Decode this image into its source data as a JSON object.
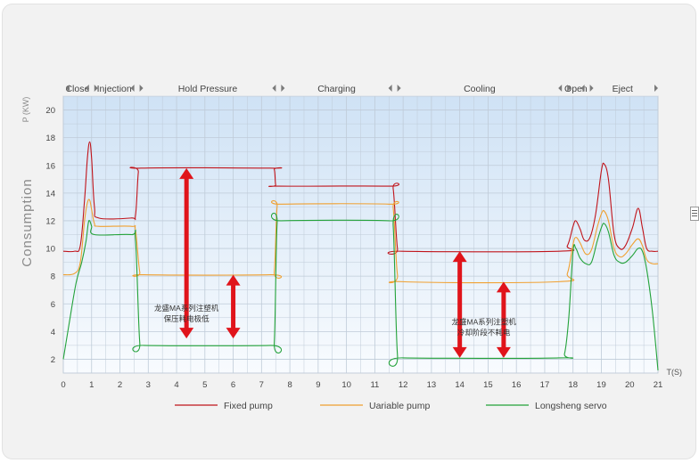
{
  "chart_data": {
    "type": "line",
    "ylabel": "Consumption",
    "yunit": "P (KW)",
    "xunit": "T(S)",
    "xlim": [
      0,
      21
    ],
    "ylim": [
      1,
      21
    ],
    "x_ticks": [
      "0",
      "1",
      "2",
      "3",
      "4",
      "5",
      "6",
      "7",
      "8",
      "9",
      "10",
      "11",
      "12",
      "13",
      "14",
      "15",
      "16",
      "17",
      "18",
      "19",
      "20",
      "21"
    ],
    "y_ticks": [
      2,
      4,
      6,
      8,
      10,
      12,
      14,
      16,
      18,
      20
    ],
    "grid": true,
    "legend_position": "bottom",
    "phases": [
      {
        "label": "Close",
        "start": 0,
        "end": 1.0
      },
      {
        "label": "Injection",
        "start": 1.0,
        "end": 2.6
      },
      {
        "label": "Hold Pressure",
        "start": 2.6,
        "end": 7.6
      },
      {
        "label": "Charging",
        "start": 7.6,
        "end": 11.7
      },
      {
        "label": "Cooling",
        "start": 11.7,
        "end": 17.7
      },
      {
        "label": "Open",
        "start": 17.7,
        "end": 18.5
      },
      {
        "label": "Eject",
        "start": 18.5,
        "end": 21
      }
    ],
    "series": [
      {
        "name": "Fixed pump",
        "color": "#c0141b",
        "points": [
          [
            0.0,
            9.8
          ],
          [
            0.4,
            9.8
          ],
          [
            0.6,
            10.2
          ],
          [
            0.75,
            13.5
          ],
          [
            0.85,
            16.5
          ],
          [
            0.93,
            17.7
          ],
          [
            1.0,
            16.5
          ],
          [
            1.1,
            13.0
          ],
          [
            1.25,
            12.2
          ],
          [
            2.4,
            12.2
          ],
          [
            2.55,
            12.4
          ],
          [
            2.65,
            15.5
          ],
          [
            2.75,
            15.8
          ],
          [
            7.3,
            15.8
          ],
          [
            7.45,
            15.7
          ],
          [
            7.5,
            14.6
          ],
          [
            7.6,
            14.5
          ],
          [
            11.5,
            14.5
          ],
          [
            11.65,
            14.3
          ],
          [
            11.8,
            10.0
          ],
          [
            11.95,
            9.8
          ],
          [
            17.5,
            9.8
          ],
          [
            17.8,
            10.2
          ],
          [
            18.0,
            11.6
          ],
          [
            18.1,
            12.0
          ],
          [
            18.25,
            11.4
          ],
          [
            18.4,
            10.6
          ],
          [
            18.6,
            10.8
          ],
          [
            18.8,
            12.5
          ],
          [
            19.0,
            15.6
          ],
          [
            19.1,
            16.1
          ],
          [
            19.25,
            15.0
          ],
          [
            19.45,
            11.0
          ],
          [
            19.65,
            10.0
          ],
          [
            19.85,
            10.2
          ],
          [
            20.1,
            11.5
          ],
          [
            20.3,
            12.9
          ],
          [
            20.45,
            11.5
          ],
          [
            20.6,
            10.0
          ],
          [
            20.8,
            9.8
          ],
          [
            21.0,
            9.8
          ]
        ]
      },
      {
        "name": "Uariable pump",
        "color": "#f0a030",
        "points": [
          [
            0.0,
            8.1
          ],
          [
            0.4,
            8.2
          ],
          [
            0.6,
            9.0
          ],
          [
            0.75,
            12.0
          ],
          [
            0.85,
            13.3
          ],
          [
            0.93,
            13.5
          ],
          [
            1.0,
            12.8
          ],
          [
            1.1,
            11.8
          ],
          [
            1.25,
            11.6
          ],
          [
            2.4,
            11.6
          ],
          [
            2.55,
            11.3
          ],
          [
            2.7,
            8.3
          ],
          [
            2.85,
            8.1
          ],
          [
            7.3,
            8.1
          ],
          [
            7.45,
            8.3
          ],
          [
            7.55,
            13.0
          ],
          [
            7.7,
            13.2
          ],
          [
            11.5,
            13.2
          ],
          [
            11.65,
            12.9
          ],
          [
            11.8,
            8.1
          ],
          [
            12.0,
            7.6
          ],
          [
            17.5,
            7.6
          ],
          [
            17.8,
            8.2
          ],
          [
            18.0,
            10.3
          ],
          [
            18.1,
            10.8
          ],
          [
            18.25,
            10.4
          ],
          [
            18.45,
            9.6
          ],
          [
            18.65,
            9.9
          ],
          [
            18.85,
            11.5
          ],
          [
            19.0,
            12.5
          ],
          [
            19.1,
            12.7
          ],
          [
            19.25,
            12.0
          ],
          [
            19.45,
            10.0
          ],
          [
            19.65,
            9.4
          ],
          [
            19.85,
            9.6
          ],
          [
            20.1,
            10.3
          ],
          [
            20.3,
            10.7
          ],
          [
            20.45,
            10.2
          ],
          [
            20.6,
            9.2
          ],
          [
            20.8,
            8.9
          ],
          [
            21.0,
            8.9
          ]
        ]
      },
      {
        "name": "Longsheng servo",
        "color": "#23a23a",
        "points": [
          [
            0.0,
            2.0
          ],
          [
            0.2,
            4.5
          ],
          [
            0.45,
            7.5
          ],
          [
            0.65,
            9.0
          ],
          [
            0.8,
            10.5
          ],
          [
            0.88,
            11.8
          ],
          [
            0.93,
            12.0
          ],
          [
            1.0,
            11.6
          ],
          [
            1.1,
            11.0
          ],
          [
            2.4,
            11.0
          ],
          [
            2.55,
            10.6
          ],
          [
            2.7,
            3.2
          ],
          [
            2.85,
            3.0
          ],
          [
            7.3,
            3.0
          ],
          [
            7.45,
            3.2
          ],
          [
            7.55,
            11.8
          ],
          [
            7.7,
            12.0
          ],
          [
            11.5,
            12.0
          ],
          [
            11.65,
            11.6
          ],
          [
            11.8,
            2.3
          ],
          [
            12.0,
            2.1
          ],
          [
            17.5,
            2.1
          ],
          [
            17.7,
            2.4
          ],
          [
            17.85,
            5.0
          ],
          [
            18.0,
            9.8
          ],
          [
            18.1,
            10.0
          ],
          [
            18.25,
            9.3
          ],
          [
            18.45,
            8.9
          ],
          [
            18.65,
            9.0
          ],
          [
            18.85,
            10.5
          ],
          [
            19.0,
            11.5
          ],
          [
            19.1,
            11.8
          ],
          [
            19.25,
            11.2
          ],
          [
            19.45,
            9.5
          ],
          [
            19.65,
            9.0
          ],
          [
            19.85,
            9.0
          ],
          [
            20.1,
            9.5
          ],
          [
            20.3,
            10.0
          ],
          [
            20.45,
            9.8
          ],
          [
            20.6,
            8.5
          ],
          [
            20.8,
            5.5
          ],
          [
            21.0,
            1.2
          ]
        ]
      }
    ],
    "annotations": [
      {
        "lines": [
          "龙盛MA系列注塑机",
          "保压耗电极低"
        ],
        "x": 4.35,
        "y": 5.5
      },
      {
        "lines": [
          "龙盛MA系列注塑机",
          "冷却阶段不耗电"
        ],
        "x": 14.85,
        "y": 4.5
      }
    ],
    "arrows": [
      {
        "x": 4.35,
        "y_from": 3.5,
        "y_to": 15.8,
        "color": "#e0141b"
      },
      {
        "x": 6.0,
        "y_from": 3.5,
        "y_to": 8.1,
        "color": "#e0141b"
      },
      {
        "x": 14.0,
        "y_from": 2.1,
        "y_to": 9.8,
        "color": "#e0141b"
      },
      {
        "x": 15.55,
        "y_from": 2.1,
        "y_to": 7.6,
        "color": "#e0141b"
      }
    ]
  }
}
